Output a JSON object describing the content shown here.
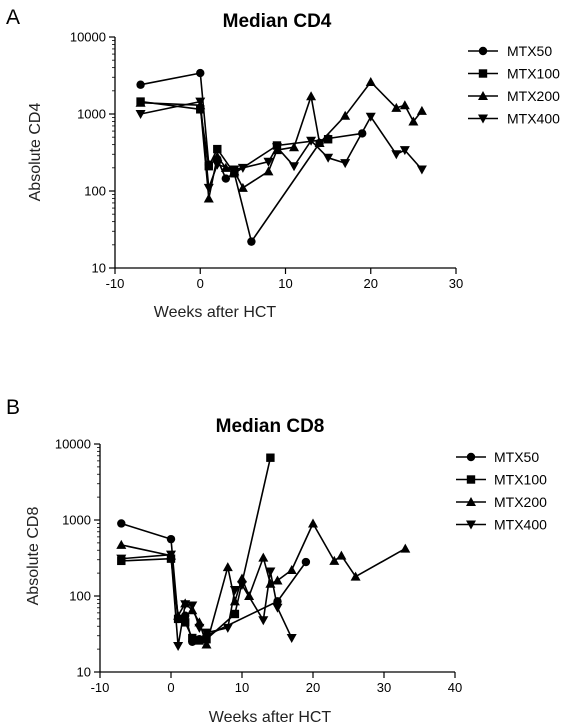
{
  "chart_data": [
    {
      "panel": "A",
      "type": "line",
      "title": "Median CD4",
      "xlabel": "Weeks after HCT",
      "ylabel": "Absolute CD4",
      "yscale": "log",
      "xlim": [
        -10,
        30
      ],
      "ylim": [
        10,
        10000
      ],
      "xticks": [
        "-10",
        "0",
        "10",
        "20",
        "30"
      ],
      "yticks": [
        "10",
        "100",
        "1000",
        "10000"
      ],
      "legend": "top-right",
      "series": [
        {
          "name": "MTX50",
          "marker": "circle",
          "x": [
            -7,
            0,
            1,
            2,
            3,
            4,
            6,
            14,
            15,
            19
          ],
          "y": [
            2400,
            3400,
            220,
            260,
            145,
            170,
            22,
            420,
            480,
            560
          ]
        },
        {
          "name": "MTX100",
          "marker": "square",
          "x": [
            -7,
            0,
            1,
            2,
            4,
            9,
            15
          ],
          "y": [
            1450,
            1150,
            210,
            350,
            170,
            390,
            470
          ]
        },
        {
          "name": "MTX200",
          "marker": "triangle-up",
          "x": [
            -7,
            0,
            1,
            2,
            3,
            4,
            5,
            8,
            9,
            11,
            13,
            14,
            17,
            20,
            23,
            24,
            25,
            26
          ],
          "y": [
            1400,
            1300,
            80,
            280,
            200,
            180,
            110,
            180,
            340,
            370,
            1700,
            420,
            950,
            2600,
            1200,
            1300,
            800,
            1100
          ]
        },
        {
          "name": "MTX400",
          "marker": "triangle-down",
          "x": [
            -7,
            0,
            1,
            2,
            4,
            5,
            8,
            9,
            11,
            13,
            15,
            17,
            20,
            23,
            24,
            26
          ],
          "y": [
            1000,
            1450,
            110,
            220,
            190,
            200,
            240,
            370,
            210,
            450,
            270,
            230,
            920,
            300,
            340,
            190
          ]
        }
      ]
    },
    {
      "panel": "B",
      "type": "line",
      "title": "Median CD8",
      "xlabel": "Weeks after HCT",
      "ylabel": "Absolute CD8",
      "yscale": "log",
      "xlim": [
        -10,
        40
      ],
      "ylim": [
        10,
        10000
      ],
      "xticks": [
        "-10",
        "0",
        "10",
        "20",
        "30",
        "40"
      ],
      "yticks": [
        "10",
        "100",
        "1000",
        "10000"
      ],
      "legend": "top-right",
      "series": [
        {
          "name": "MTX50",
          "marker": "circle",
          "x": [
            -7,
            0,
            1,
            2,
            3,
            4,
            5,
            15,
            19
          ],
          "y": [
            900,
            560,
            50,
            55,
            25,
            27,
            30,
            85,
            280
          ]
        },
        {
          "name": "MTX100",
          "marker": "square",
          "x": [
            -7,
            0,
            1,
            2,
            3,
            4,
            5,
            9,
            14
          ],
          "y": [
            290,
            310,
            50,
            45,
            28,
            26,
            27,
            58,
            6600
          ]
        },
        {
          "name": "MTX200",
          "marker": "triangle-up",
          "x": [
            -7,
            0,
            1,
            2,
            3,
            4,
            5,
            8,
            9,
            10,
            11,
            13,
            14,
            15,
            17,
            20,
            23,
            24,
            26,
            33
          ],
          "y": [
            470,
            340,
            55,
            80,
            65,
            45,
            23,
            240,
            85,
            170,
            100,
            320,
            145,
            160,
            220,
            900,
            290,
            340,
            180,
            420
          ]
        },
        {
          "name": "MTX400",
          "marker": "triangle-down",
          "x": [
            -7,
            0,
            1,
            2,
            3,
            4,
            5,
            8,
            9,
            10,
            13,
            14,
            15,
            17
          ],
          "y": [
            310,
            350,
            22,
            78,
            75,
            38,
            33,
            38,
            120,
            140,
            48,
            210,
            70,
            28
          ]
        }
      ]
    }
  ]
}
